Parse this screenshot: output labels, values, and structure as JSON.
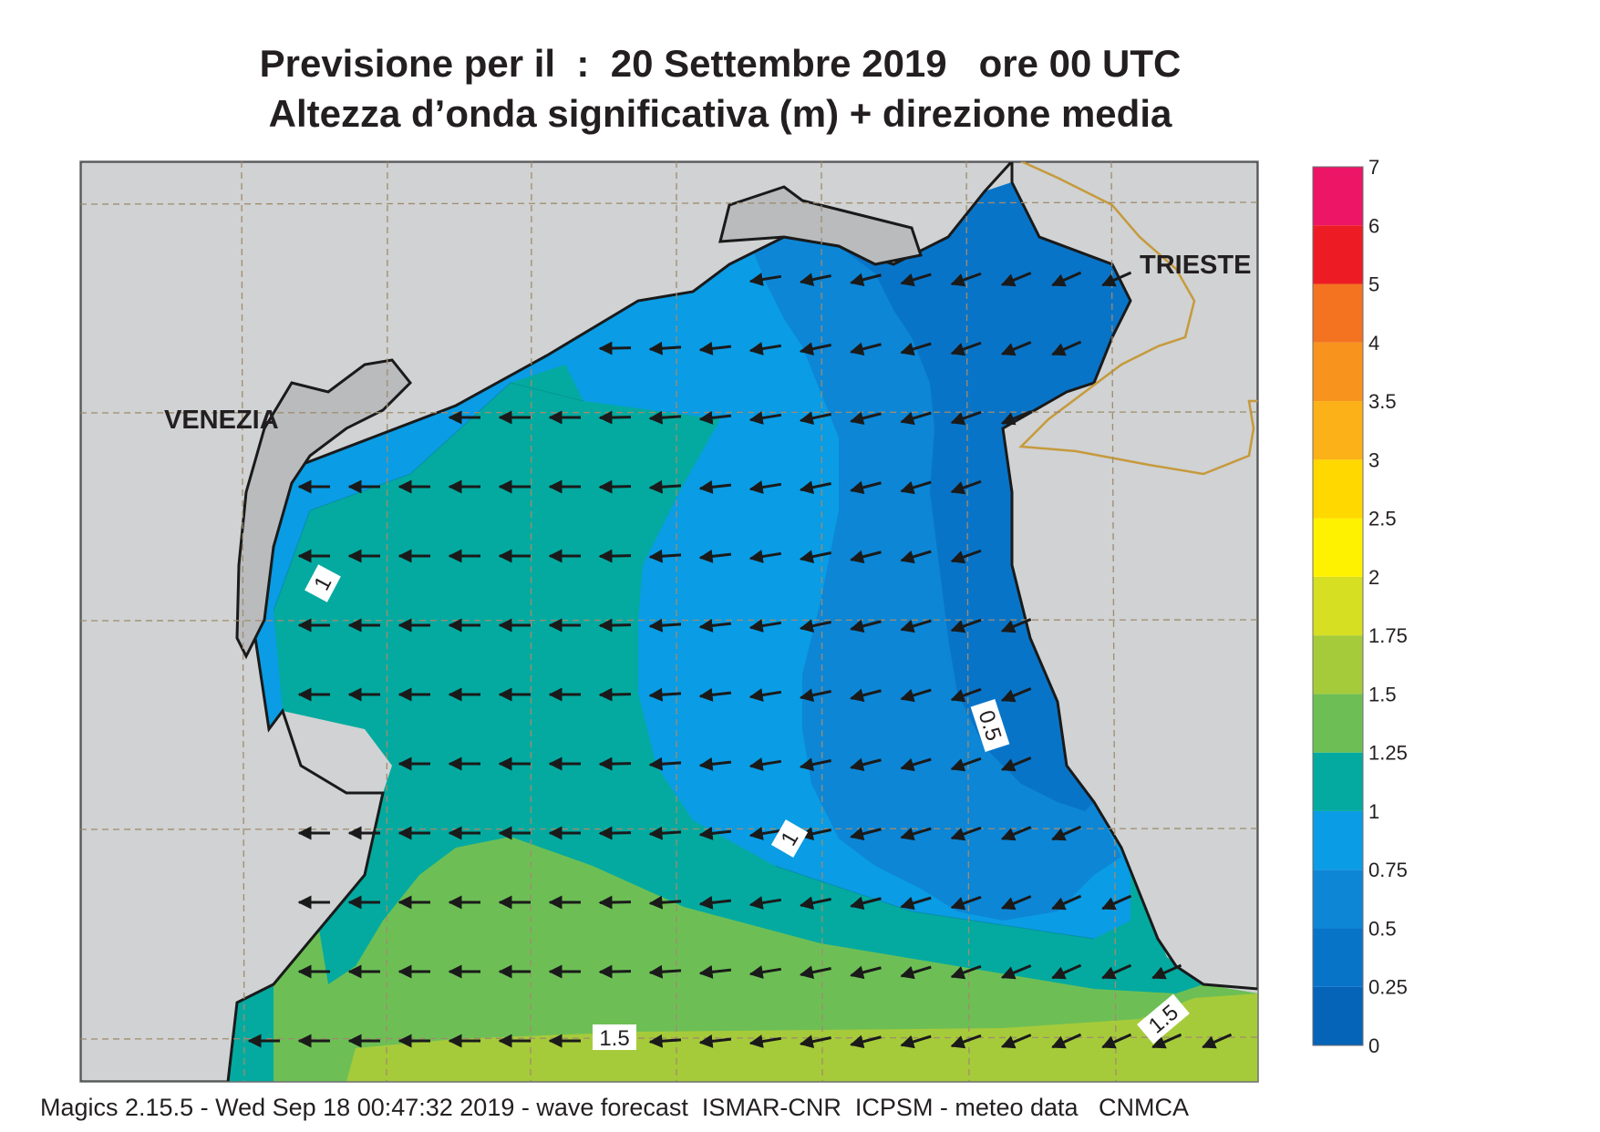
{
  "title": {
    "line1": "Previsione per il  :  20 Settembre 2019   ore 00 UTC",
    "line2": "Altezza d’onda significativa (m) + direzione media"
  },
  "cities": {
    "venezia": "VENEZIA",
    "trieste": "TRIESTE"
  },
  "contour_labels": [
    {
      "text": "1",
      "value": 1
    },
    {
      "text": "1",
      "value": 1
    },
    {
      "text": "0.5",
      "value": 0.5
    },
    {
      "text": "1.5",
      "value": 1.5
    },
    {
      "text": "1.5",
      "value": 1.5
    }
  ],
  "legend": {
    "breaks": [
      "0",
      "0.25",
      "0.5",
      "0.75",
      "1",
      "1.25",
      "1.5",
      "1.75",
      "2",
      "2.5",
      "3",
      "3.5",
      "4",
      "5",
      "6",
      "7"
    ],
    "colors": [
      "#0563b8",
      "#0874c8",
      "#0d86d6",
      "#0a9ce4",
      "#04aaa0",
      "#6dbf55",
      "#a6cb3a",
      "#d6df22",
      "#fff200",
      "#ffd800",
      "#fbb117",
      "#f8941d",
      "#f37321",
      "#ed1c24",
      "#ec1566"
    ]
  },
  "colors": {
    "land": "#d0d2d3",
    "border": "#c69a3c",
    "coast": "#1a1a1a",
    "grid": "#a08c6e"
  },
  "arrows": {
    "direction_note": "",
    "color": "#1a1a1a"
  },
  "footer": "Magics 2.15.5 - Wed Sep 18 00:47:32 2019 - wave forecast  ISMAR-CNR  ICPSM - meteo data   CNMCA"
}
